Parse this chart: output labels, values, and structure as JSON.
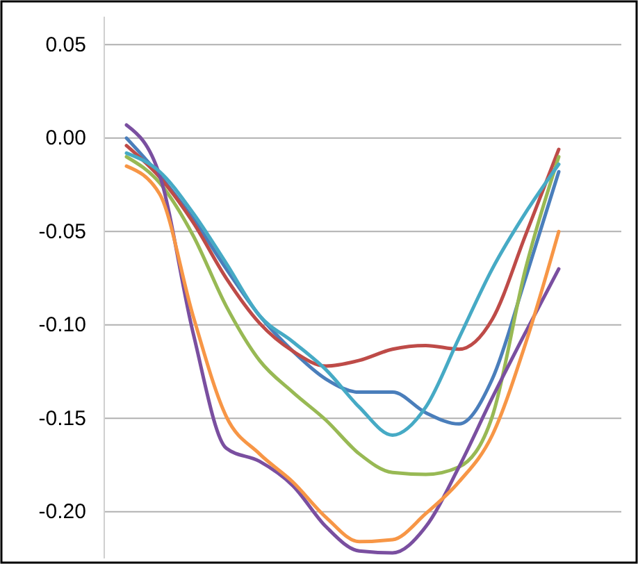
{
  "chart_data": {
    "type": "line",
    "categories": [
      null,
      null,
      null,
      null,
      null,
      null,
      null,
      null,
      null,
      null,
      null,
      null,
      null,
      null
    ],
    "ylim": [
      -0.225,
      0.065
    ],
    "yticks": [
      {
        "value": 0.05,
        "label": "0.05"
      },
      {
        "value": 0,
        "label": "0.00"
      },
      {
        "value": -0.05,
        "label": "-0.05"
      },
      {
        "value": -0.1,
        "label": "-0.10"
      },
      {
        "value": -0.15,
        "label": "-0.15"
      },
      {
        "value": -0.2,
        "label": "-0.20"
      }
    ],
    "grid": "y",
    "legend": false,
    "marker": "none",
    "line_style": "solid",
    "series": [
      {
        "color": "#4a7ebb",
        "values": [
          0.0,
          -0.02,
          -0.043,
          -0.07,
          -0.095,
          -0.114,
          -0.129,
          -0.136,
          -0.136,
          -0.147,
          -0.153,
          -0.129,
          -0.075,
          -0.018
        ]
      },
      {
        "color": "#be4b48",
        "values": [
          -0.004,
          -0.021,
          -0.045,
          -0.075,
          -0.099,
          -0.114,
          -0.122,
          -0.119,
          -0.113,
          -0.111,
          -0.113,
          -0.097,
          -0.052,
          -0.006
        ]
      },
      {
        "color": "#98b954",
        "values": [
          -0.01,
          -0.024,
          -0.052,
          -0.09,
          -0.119,
          -0.136,
          -0.151,
          -0.169,
          -0.179,
          -0.18,
          -0.176,
          -0.149,
          -0.07,
          -0.01
        ]
      },
      {
        "color": "#7a4fa0",
        "values": [
          0.007,
          -0.02,
          -0.104,
          -0.166,
          -0.173,
          -0.186,
          -0.208,
          -0.221,
          -0.222,
          -0.208,
          -0.176,
          -0.139,
          -0.104,
          -0.07
        ]
      },
      {
        "color": "#46aac5",
        "values": [
          -0.008,
          -0.018,
          -0.04,
          -0.067,
          -0.095,
          -0.109,
          -0.124,
          -0.144,
          -0.159,
          -0.144,
          -0.107,
          -0.07,
          -0.04,
          -0.014
        ]
      },
      {
        "color": "#f79646",
        "values": [
          -0.015,
          -0.03,
          -0.095,
          -0.149,
          -0.169,
          -0.184,
          -0.203,
          -0.216,
          -0.215,
          -0.201,
          -0.184,
          -0.159,
          -0.11,
          -0.05
        ]
      }
    ]
  }
}
